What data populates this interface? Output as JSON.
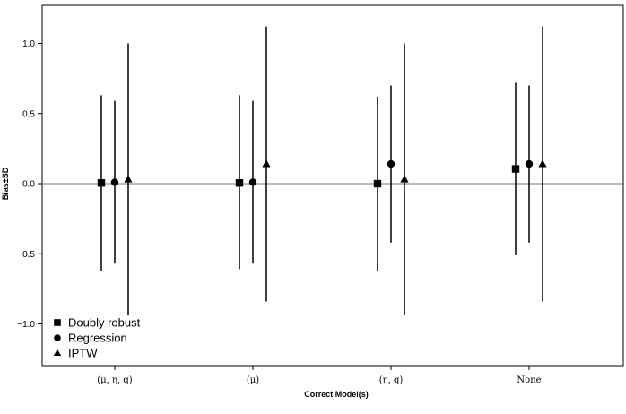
{
  "chart_data": {
    "type": "scatter",
    "xlabel": "Correct Model(s)",
    "ylabel": "Bias±SD",
    "categories": [
      "(μ, η, q)",
      "(μ)",
      "(η, q)",
      "None"
    ],
    "ylim": [
      -1.3,
      1.3
    ],
    "yticks": [
      -1.0,
      -0.5,
      0.0,
      0.5,
      1.0
    ],
    "ytick_labels": [
      "−1.0",
      "−0.5",
      "0.0",
      "0.5",
      "1.0"
    ],
    "reference_line_y": 0,
    "legend_position": "bottom-left",
    "series": [
      {
        "name": "Doubly robust",
        "marker": "square",
        "color": "#000000",
        "values": [
          0.005,
          0.005,
          0.0,
          0.105
        ],
        "lower": [
          -0.62,
          -0.61,
          -0.62,
          -0.51
        ],
        "upper": [
          0.63,
          0.63,
          0.62,
          0.72
        ]
      },
      {
        "name": "Regression",
        "marker": "circle",
        "color": "#000000",
        "values": [
          0.01,
          0.01,
          0.14,
          0.14
        ],
        "lower": [
          -0.57,
          -0.57,
          -0.42,
          -0.42
        ],
        "upper": [
          0.59,
          0.59,
          0.7,
          0.7
        ]
      },
      {
        "name": "IPTW",
        "marker": "triangle",
        "color": "#000000",
        "values": [
          0.03,
          0.14,
          0.03,
          0.14
        ],
        "lower": [
          -0.94,
          -0.84,
          -0.94,
          -0.84
        ],
        "upper": [
          1.0,
          1.12,
          1.0,
          1.12
        ]
      }
    ]
  }
}
